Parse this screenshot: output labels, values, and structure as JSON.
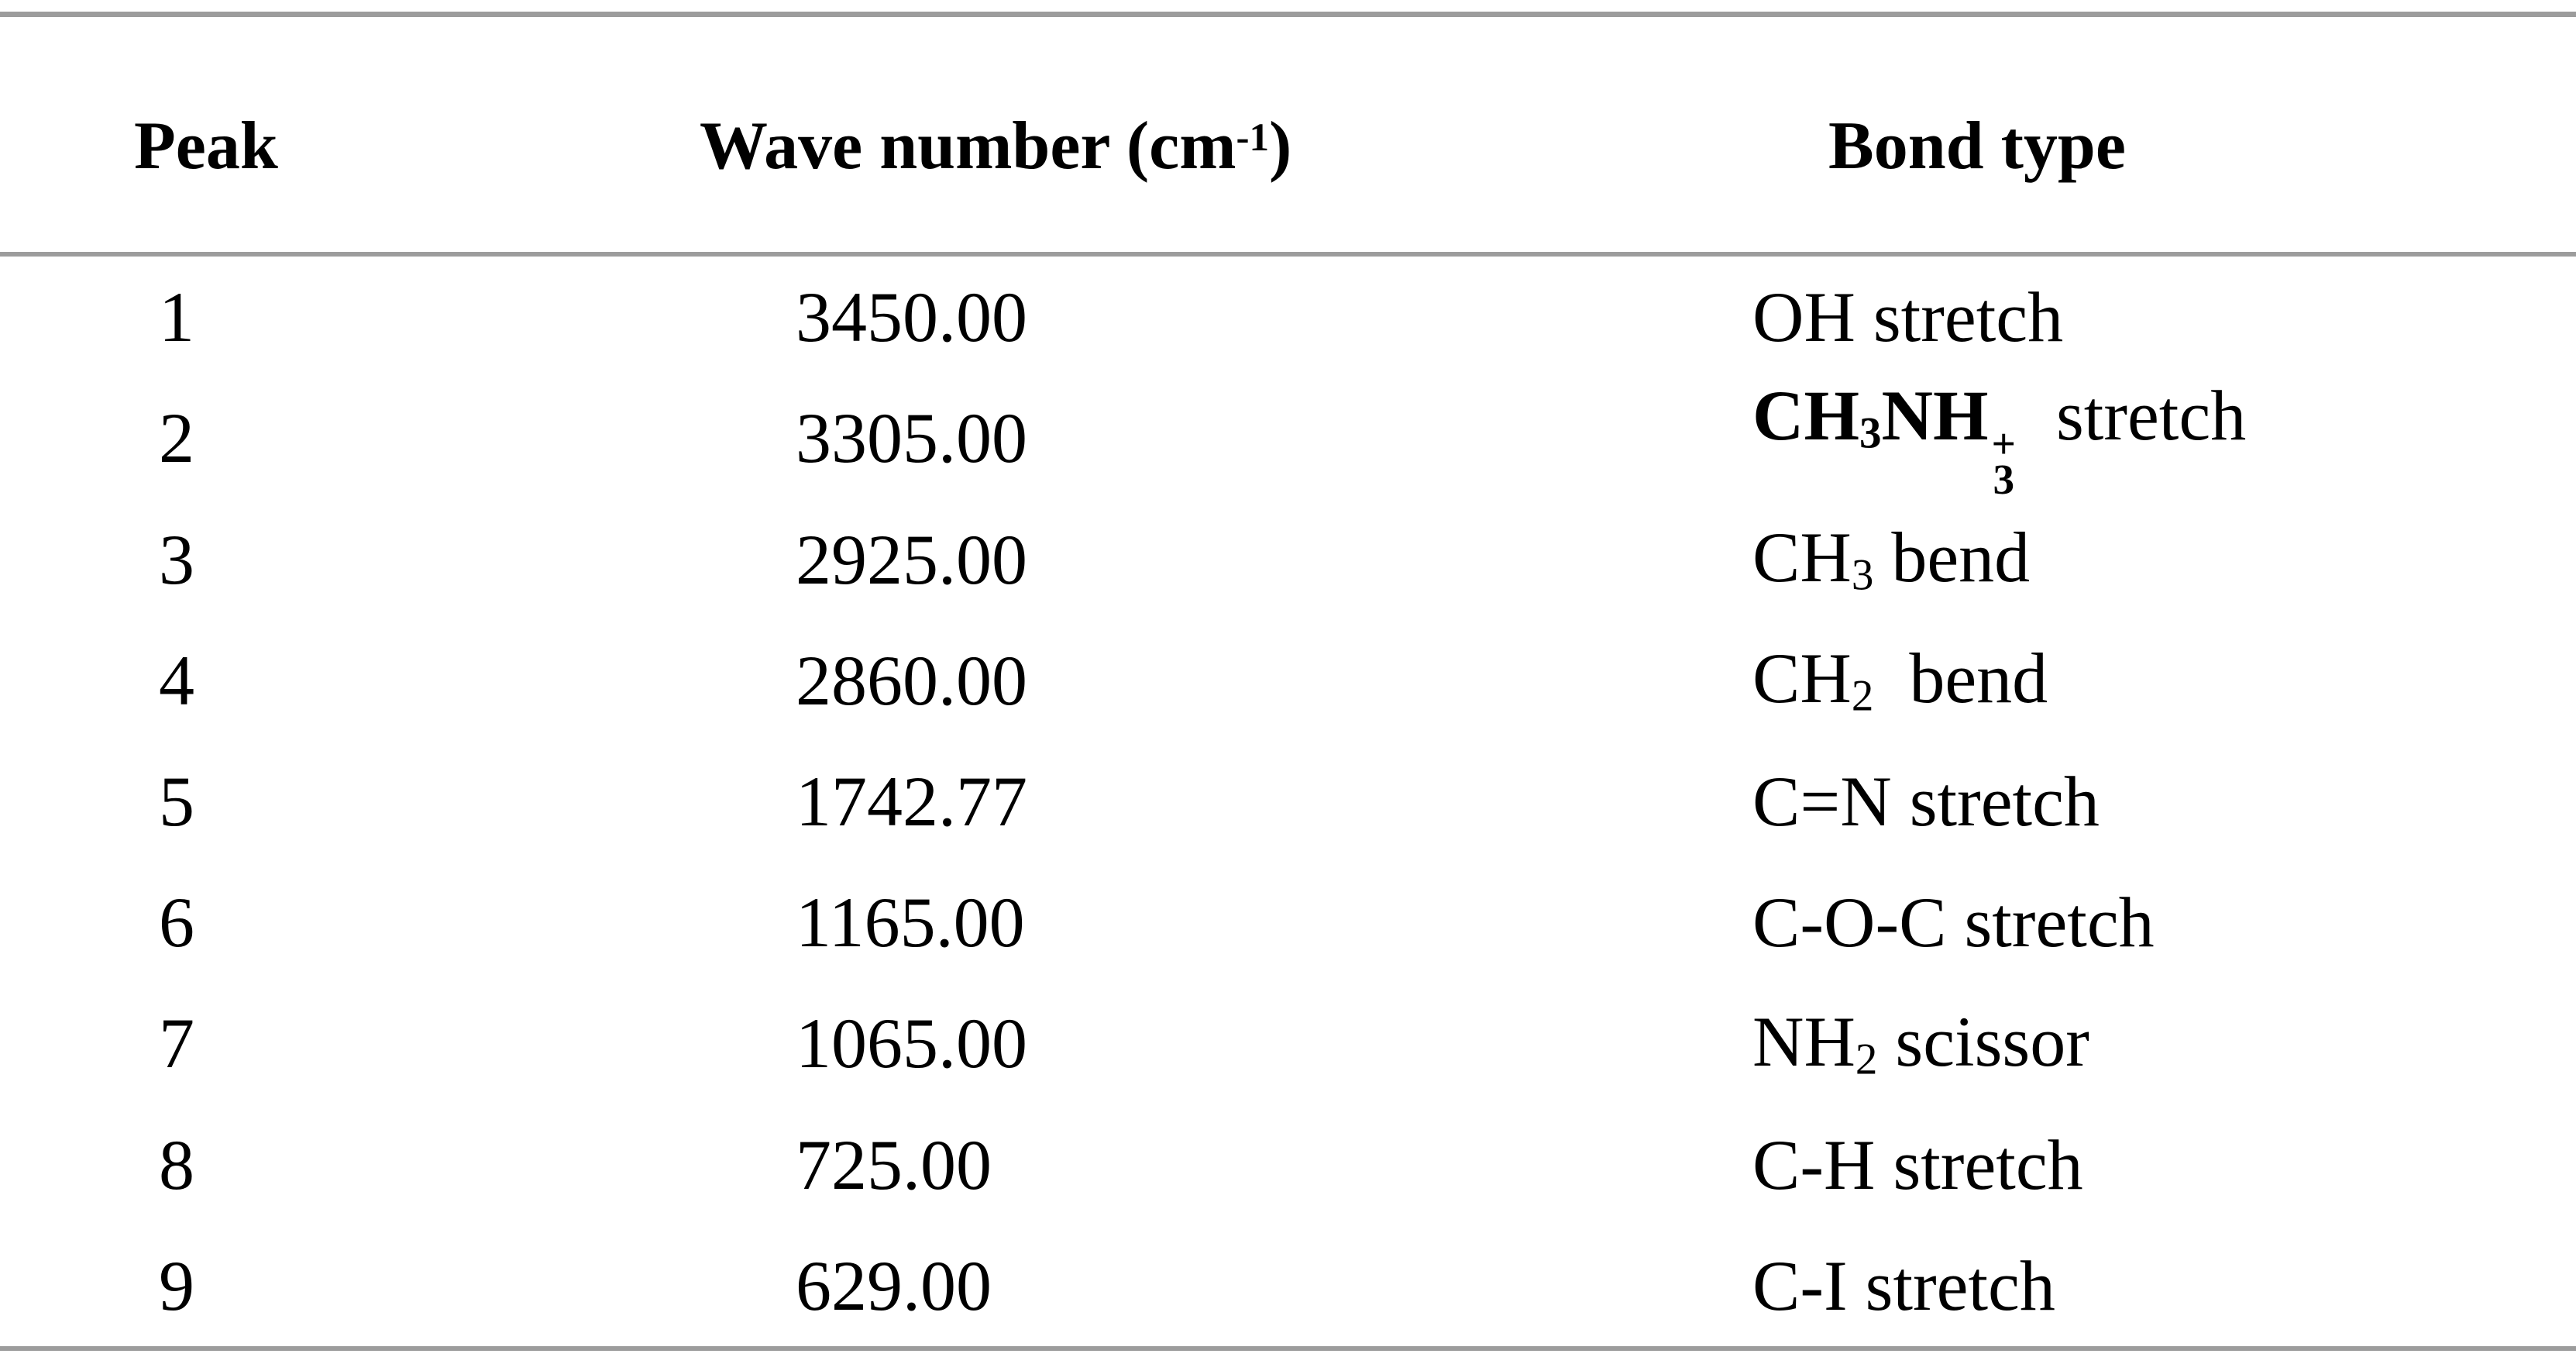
{
  "table": {
    "headers": {
      "peak": "Peak",
      "wavenumber_prefix": "Wave number (cm",
      "wavenumber_sup": "-1",
      "wavenumber_suffix": ")",
      "bond": "Bond type"
    },
    "rows": [
      {
        "peak": "1",
        "wavenumber": "3450.00",
        "bond_text": "OH stretch"
      },
      {
        "peak": "2",
        "wavenumber": "3305.00",
        "bond_formula": {
          "seg1": "CH",
          "sub1": "3",
          "seg2": "NH",
          "sub2": "3",
          "sup2": "+"
        },
        "bond_suffix": "  stretch"
      },
      {
        "peak": "3",
        "wavenumber": "2925.00",
        "bond_seg": "CH",
        "bond_sub": "3",
        "bond_suffix": " bend"
      },
      {
        "peak": "4",
        "wavenumber": "2860.00",
        "bond_seg": "CH",
        "bond_sub": "2",
        "bond_suffix": "  bend"
      },
      {
        "peak": "5",
        "wavenumber": "1742.77",
        "bond_text": "C=N stretch"
      },
      {
        "peak": "6",
        "wavenumber": "1165.00",
        "bond_text": "C-O-C stretch"
      },
      {
        "peak": "7",
        "wavenumber": "1065.00",
        "bond_seg": "NH",
        "bond_sub": "2",
        "bond_suffix": " scissor"
      },
      {
        "peak": "8",
        "wavenumber": "725.00",
        "bond_text": "C-H stretch"
      },
      {
        "peak": "9",
        "wavenumber": "629.00",
        "bond_text": "C-I stretch"
      }
    ]
  },
  "colors": {
    "rule": "#9c9c9c",
    "text": "#000000",
    "background": "#ffffff"
  }
}
